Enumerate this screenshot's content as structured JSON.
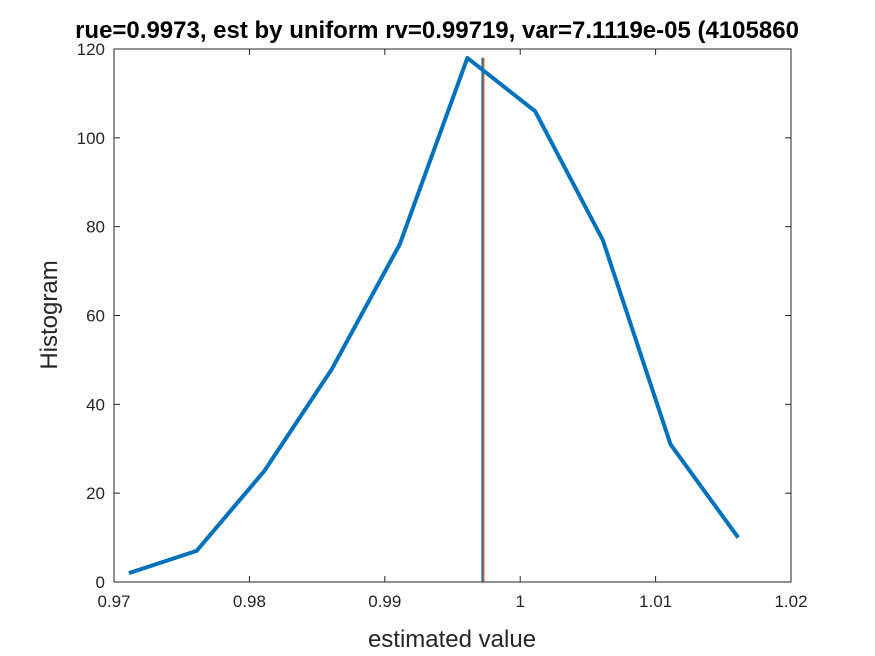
{
  "chart_data": {
    "type": "line",
    "title": "rue=0.9973, est by uniform rv=0.99719, var=7.1119e-05 (4105860",
    "xlabel": "estimated value",
    "ylabel": "Histogram",
    "xlim": [
      0.97,
      1.02
    ],
    "ylim": [
      0,
      120
    ],
    "xticks": [
      0.97,
      0.98,
      0.99,
      1,
      1.01,
      1.02
    ],
    "xtick_labels": [
      "0.97",
      "0.98",
      "0.99",
      "1",
      "1.01",
      "1.02"
    ],
    "yticks": [
      0,
      20,
      40,
      60,
      80,
      100,
      120
    ],
    "ytick_labels": [
      "0",
      "20",
      "40",
      "60",
      "80",
      "100",
      "120"
    ],
    "grid": false,
    "series": [
      {
        "color": "#0072BD",
        "x": [
          0.9711,
          0.9761,
          0.9811,
          0.9861,
          0.9911,
          0.9961,
          1.0011,
          1.0061,
          1.0111,
          1.0161
        ],
        "y": [
          2,
          7,
          25,
          48,
          76,
          118,
          106,
          77,
          31,
          10
        ]
      }
    ],
    "vlines": [
      {
        "x": 0.9973,
        "color": "#D95319"
      },
      {
        "x": 0.99719,
        "color": "#0072BD"
      }
    ]
  }
}
